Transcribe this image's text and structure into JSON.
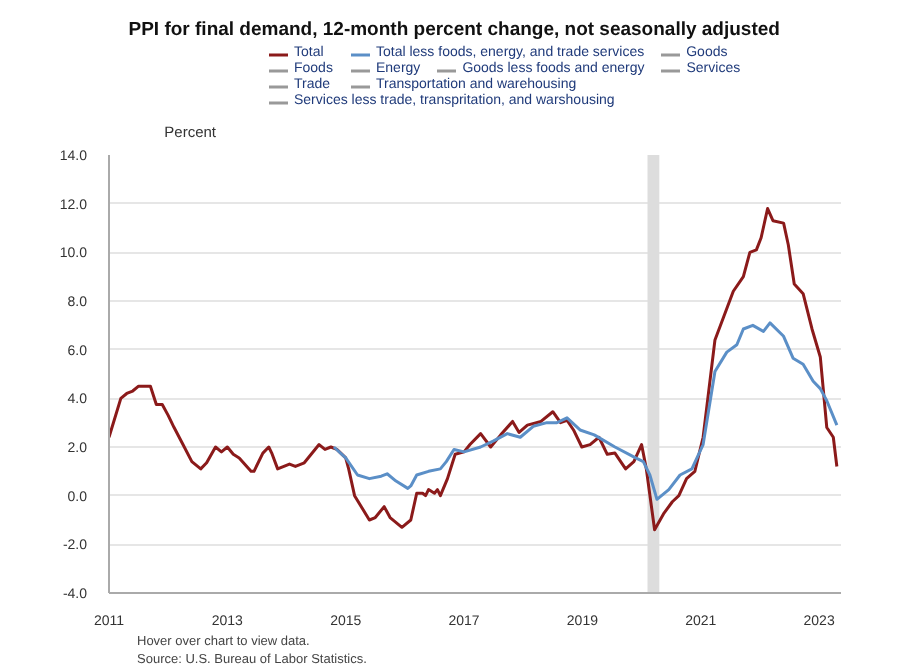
{
  "chart_data": {
    "type": "line",
    "title": "PPI for final demand, 12-month percent change, not seasonally adjusted",
    "ylabel": "Percent",
    "xlim": [
      2011,
      2023.37
    ],
    "xticks": [
      2011,
      2013,
      2015,
      2017,
      2019,
      2021,
      2023
    ],
    "ylim": [
      -4,
      14
    ],
    "yticks": [
      {
        "value": -4,
        "label": "-4.0"
      },
      {
        "value": -2,
        "label": "-2.0"
      },
      {
        "value": 0,
        "label": "0.0"
      },
      {
        "value": 2,
        "label": "2.0"
      },
      {
        "value": 4,
        "label": "4.0"
      },
      {
        "value": 6,
        "label": "6.0"
      },
      {
        "value": 8,
        "label": "8.0"
      },
      {
        "value": 10,
        "label": "10.0"
      },
      {
        "value": 12,
        "label": "12.0"
      },
      {
        "value": 14,
        "label": "14.0"
      }
    ],
    "grid": "y",
    "legend": "top",
    "line_style": "solid",
    "marker": "none",
    "bands": [
      {
        "axis": "x",
        "from": 2020.1,
        "to": 2020.3,
        "color": "#dddddd"
      }
    ],
    "annotations": [
      "Hover over chart to view data.",
      "Source: U.S. Bureau of Labor Statistics."
    ],
    "series": [
      {
        "name": "Total",
        "color": "#8b1a1a",
        "x": [
          2011.0,
          2011.2,
          2011.3,
          2011.4,
          2011.5,
          2011.7,
          2011.8,
          2011.9,
          2012.0,
          2012.1,
          2012.25,
          2012.4,
          2012.55,
          2012.65,
          2012.8,
          2012.9,
          2013.0,
          2013.1,
          2013.2,
          2013.4,
          2013.45,
          2013.6,
          2013.7,
          2013.75,
          2013.85,
          2014.05,
          2014.15,
          2014.3,
          2014.55,
          2014.65,
          2014.75,
          2014.85,
          2015.0,
          2015.05,
          2015.15,
          2015.4,
          2015.5,
          2015.65,
          2015.75,
          2015.95,
          2016.1,
          2016.2,
          2016.3,
          2016.35,
          2016.4,
          2016.5,
          2016.55,
          2016.6,
          2016.72,
          2016.85,
          2017.0,
          2017.1,
          2017.28,
          2017.45,
          2017.62,
          2017.82,
          2017.93,
          2018.07,
          2018.3,
          2018.5,
          2018.63,
          2018.74,
          2018.85,
          2018.99,
          2019.13,
          2019.28,
          2019.42,
          2019.55,
          2019.73,
          2019.87,
          2020.0,
          2020.08,
          2020.22,
          2020.37,
          2020.52,
          2020.63,
          2020.76,
          2020.9,
          2021.04,
          2021.24,
          2021.38,
          2021.55,
          2021.72,
          2021.83,
          2021.94,
          2022.02,
          2022.13,
          2022.22,
          2022.4,
          2022.48,
          2022.58,
          2022.73,
          2022.88,
          2023.02,
          2023.13,
          2023.24,
          2023.3
        ],
        "values": [
          2.4,
          4.0,
          4.2,
          4.3,
          4.5,
          4.5,
          3.75,
          3.75,
          3.3,
          2.8,
          2.1,
          1.4,
          1.1,
          1.35,
          2.0,
          1.8,
          2.0,
          1.7,
          1.55,
          1.0,
          1.0,
          1.75,
          2.0,
          1.75,
          1.1,
          1.3,
          1.2,
          1.35,
          2.1,
          1.9,
          2.0,
          1.9,
          1.55,
          1.1,
          0.0,
          -1.0,
          -0.9,
          -0.45,
          -0.9,
          -1.3,
          -1.0,
          0.1,
          0.1,
          0.0,
          0.25,
          0.1,
          0.25,
          0.0,
          0.7,
          1.7,
          1.8,
          2.1,
          2.55,
          2.0,
          2.5,
          3.05,
          2.6,
          2.9,
          3.05,
          3.45,
          3.0,
          3.1,
          2.7,
          2.0,
          2.1,
          2.4,
          1.7,
          1.75,
          1.1,
          1.4,
          2.1,
          1.1,
          -1.4,
          -0.75,
          -0.25,
          0.0,
          0.7,
          1.0,
          2.4,
          6.4,
          7.3,
          8.4,
          9.0,
          10.0,
          10.1,
          10.6,
          11.8,
          11.3,
          11.2,
          10.3,
          8.7,
          8.3,
          6.85,
          5.7,
          2.8,
          2.4,
          1.2
        ]
      },
      {
        "name": "Total less foods, energy, and trade services",
        "color": "#5b8fc7",
        "x": [
          2014.8,
          2015.0,
          2015.2,
          2015.4,
          2015.6,
          2015.7,
          2015.85,
          2016.05,
          2016.1,
          2016.2,
          2016.4,
          2016.6,
          2016.7,
          2016.83,
          2017.0,
          2017.28,
          2017.5,
          2017.73,
          2017.95,
          2018.17,
          2018.4,
          2018.57,
          2018.74,
          2018.96,
          2019.2,
          2019.55,
          2019.9,
          2020.03,
          2020.14,
          2020.26,
          2020.46,
          2020.65,
          2020.85,
          2021.04,
          2021.24,
          2021.44,
          2021.61,
          2021.72,
          2021.88,
          2022.06,
          2022.17,
          2022.4,
          2022.56,
          2022.73,
          2022.9,
          2023.02,
          2023.13,
          2023.3
        ],
        "values": [
          2.0,
          1.55,
          0.85,
          0.7,
          0.8,
          0.9,
          0.6,
          0.3,
          0.4,
          0.85,
          1.0,
          1.1,
          1.4,
          1.9,
          1.8,
          2.0,
          2.25,
          2.55,
          2.4,
          2.85,
          3.0,
          3.0,
          3.2,
          2.7,
          2.5,
          2.0,
          1.55,
          1.4,
          0.85,
          -0.15,
          0.25,
          0.85,
          1.1,
          2.1,
          5.1,
          5.9,
          6.2,
          6.85,
          7.0,
          6.75,
          7.1,
          6.55,
          5.65,
          5.4,
          4.7,
          4.4,
          3.9,
          2.9
        ]
      },
      {
        "name": "Goods",
        "color": "#999999"
      },
      {
        "name": "Foods",
        "color": "#999999"
      },
      {
        "name": "Energy",
        "color": "#999999"
      },
      {
        "name": "Goods less foods and energy",
        "color": "#999999"
      },
      {
        "name": "Services",
        "color": "#999999"
      },
      {
        "name": "Trade",
        "color": "#999999"
      },
      {
        "name": "Transportation and warehousing",
        "color": "#999999"
      },
      {
        "name": "Services less trade, transpritation, and warshousing",
        "color": "#999999"
      }
    ]
  }
}
